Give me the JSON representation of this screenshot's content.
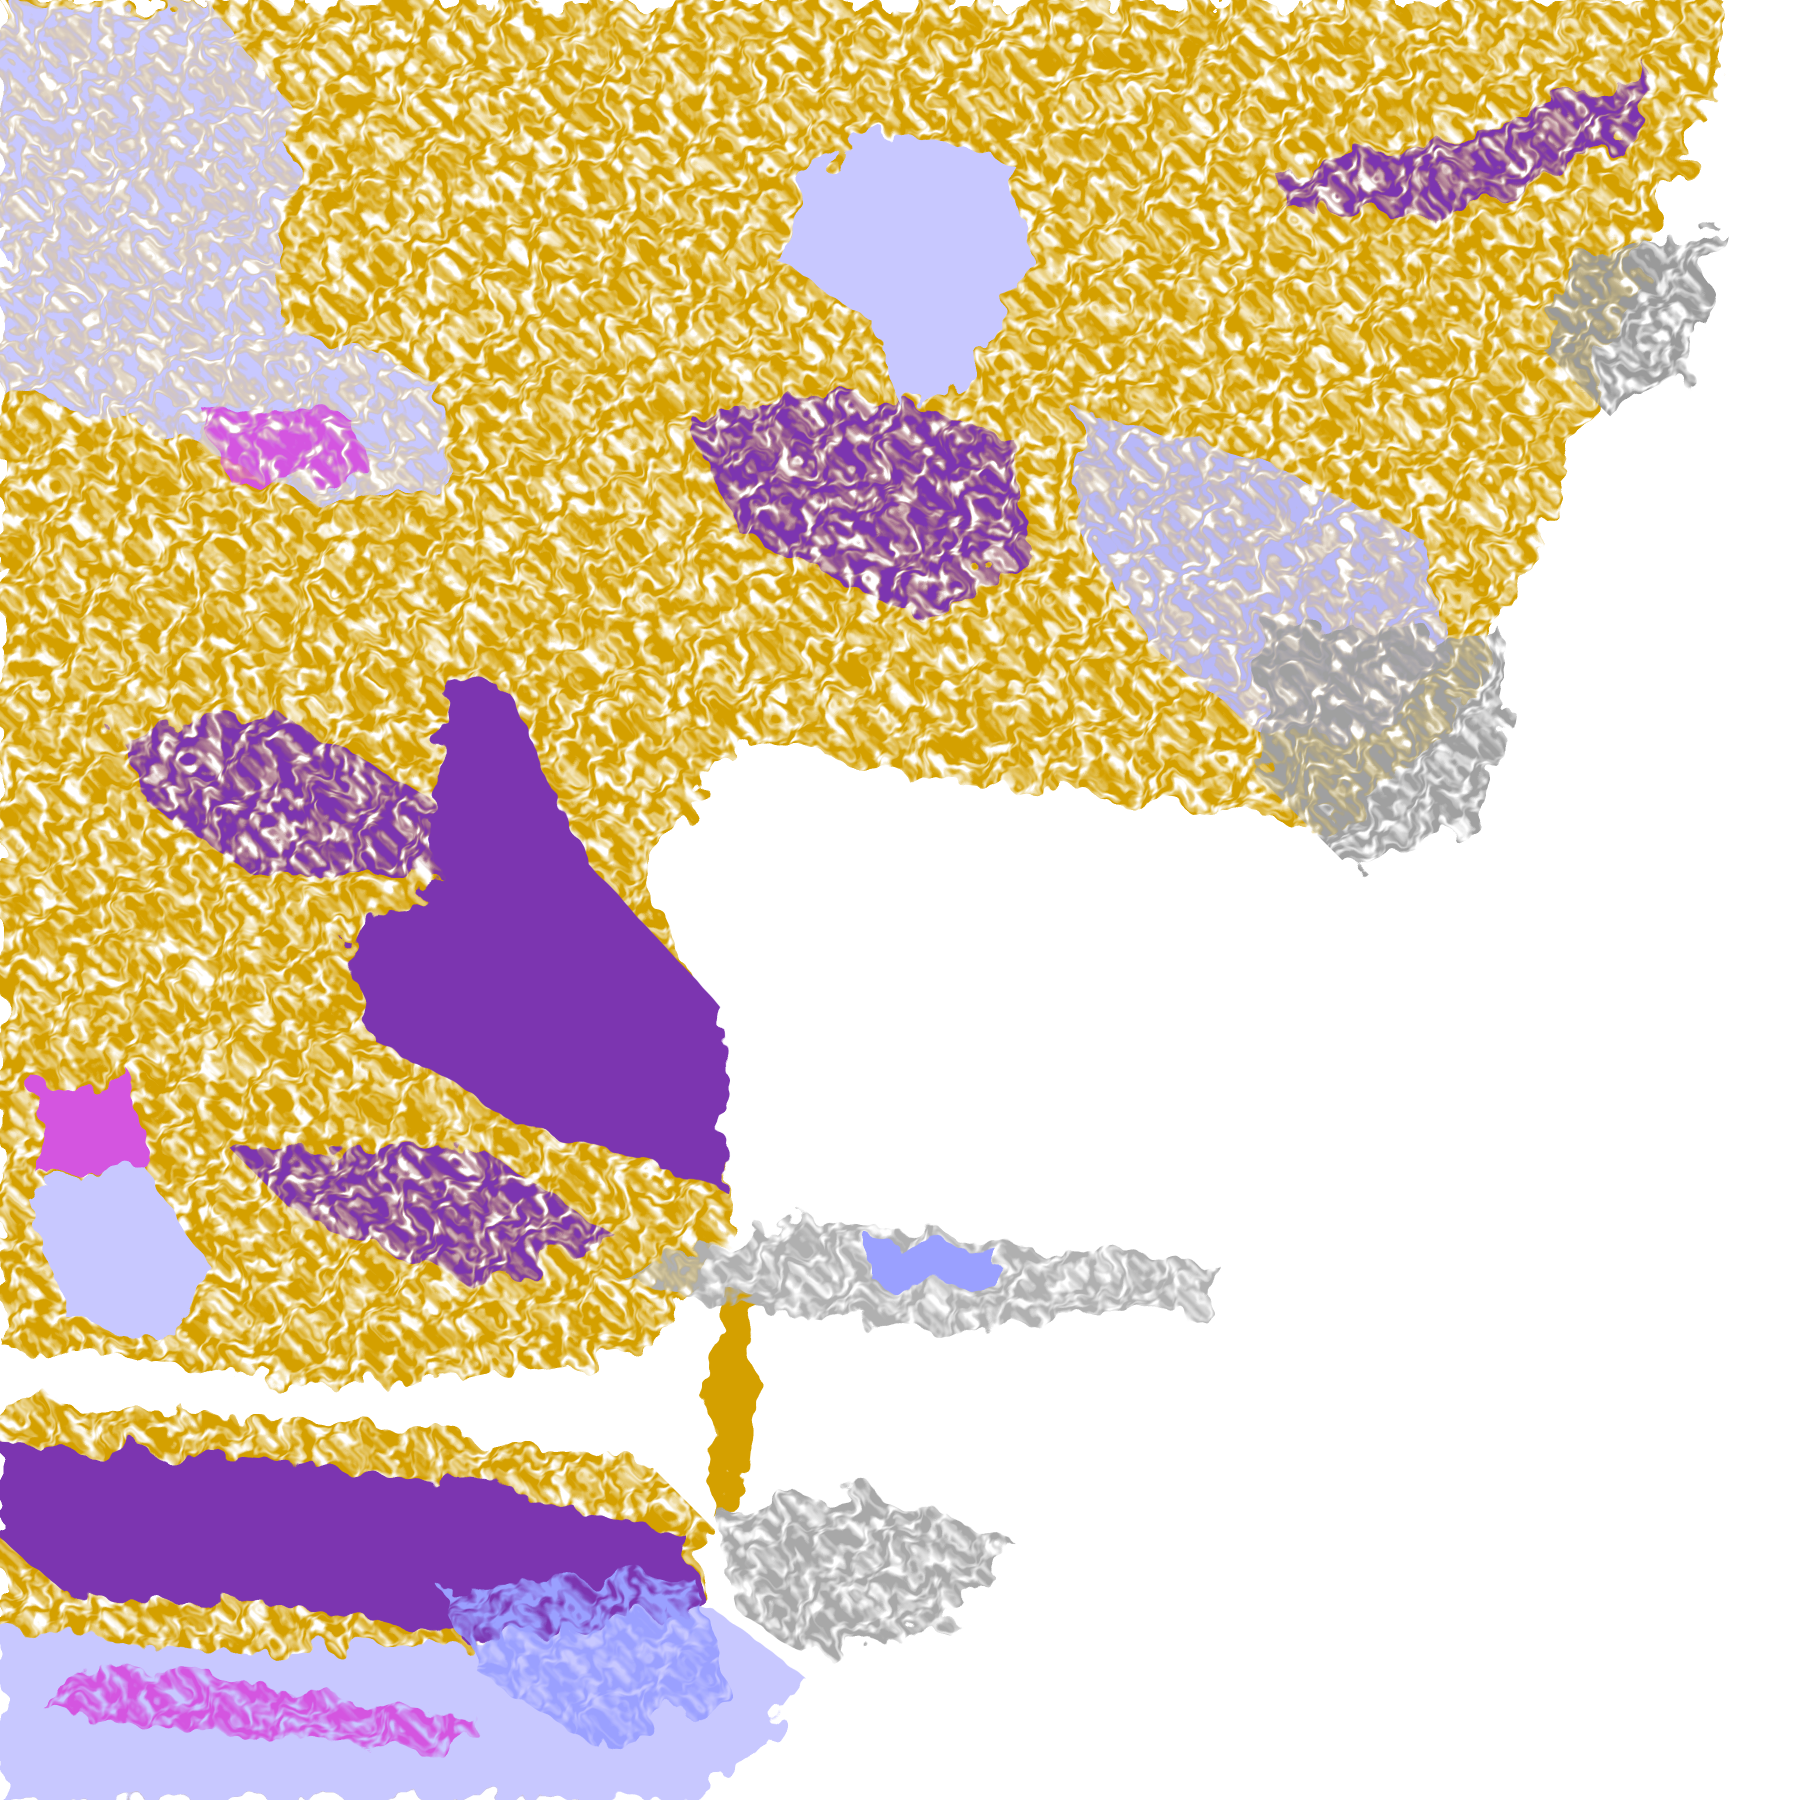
{
  "image": {
    "kind": "satellite cloud-classification imagery",
    "colors": {
      "background": "#ffffff",
      "gold": "#d4a000",
      "purple": "#7b35b0",
      "lavender": "#c8c8ff",
      "periwinkle": "#9aa0ff",
      "gray": "#9a9a9a",
      "magenta": "#d455e0"
    }
  }
}
